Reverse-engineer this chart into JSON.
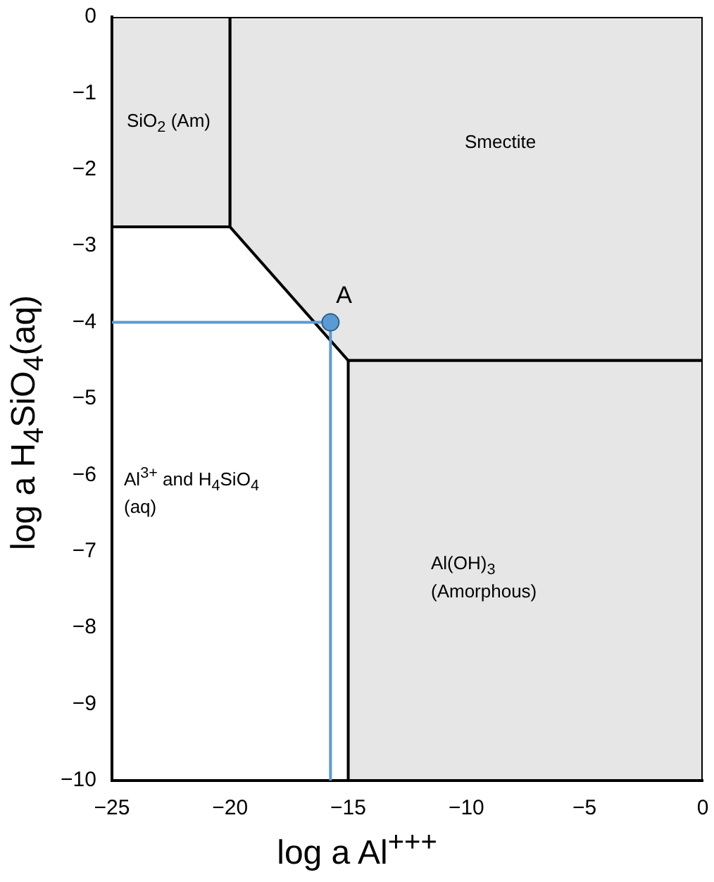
{
  "chart_data": {
    "type": "area",
    "xlabel": "log a Al$^{+++}$",
    "ylabel": "log a H$_{4}$SiO$_{4}$(aq)",
    "xlim": [
      -25,
      0
    ],
    "ylim": [
      -10,
      0
    ],
    "xticks": [
      -25,
      -20,
      -15,
      -10,
      -5,
      0
    ],
    "yticks": [
      0,
      -1,
      -2,
      -3,
      -4,
      -5,
      -6,
      -7,
      -8,
      -9,
      -10
    ],
    "grid": false,
    "legend": false,
    "series": [
      {
        "type": "area",
        "color": "#e6e6e6",
        "x": [
          -25,
          -20,
          -20,
          -25,
          -25
        ],
        "values": [
          0,
          0,
          -2.75,
          -2.75,
          0
        ]
      },
      {
        "type": "area",
        "color": "#e6e6e6",
        "x": [
          -20,
          0,
          0,
          -15,
          -20,
          -20
        ],
        "values": [
          0,
          0,
          -4.5,
          -4.5,
          -2.75,
          0
        ]
      },
      {
        "type": "area",
        "color": "#e6e6e6",
        "x": [
          -15,
          0,
          0,
          -15,
          -15
        ],
        "values": [
          -4.5,
          -4.5,
          -10,
          -10,
          -4.5
        ]
      },
      {
        "type": "line",
        "color": "#5b9bd5",
        "x": [
          -25,
          -15.75,
          -15.75
        ],
        "values": [
          -4,
          -4,
          -10
        ]
      },
      {
        "type": "scatter",
        "color": "#5b9bd5",
        "marker": "circle",
        "x": [
          -15.75
        ],
        "values": [
          -4
        ]
      }
    ],
    "annotations": [
      "SiO$_{2}$ (Am)",
      "Smectite",
      {
        "text": "A",
        "x": -15.75,
        "y": -4
      },
      "Al$^{3+}$ and H$_{4}$SiO$_{4}$ (aq)",
      "Al(OH)$_{3}$ (Amorphous)"
    ]
  }
}
